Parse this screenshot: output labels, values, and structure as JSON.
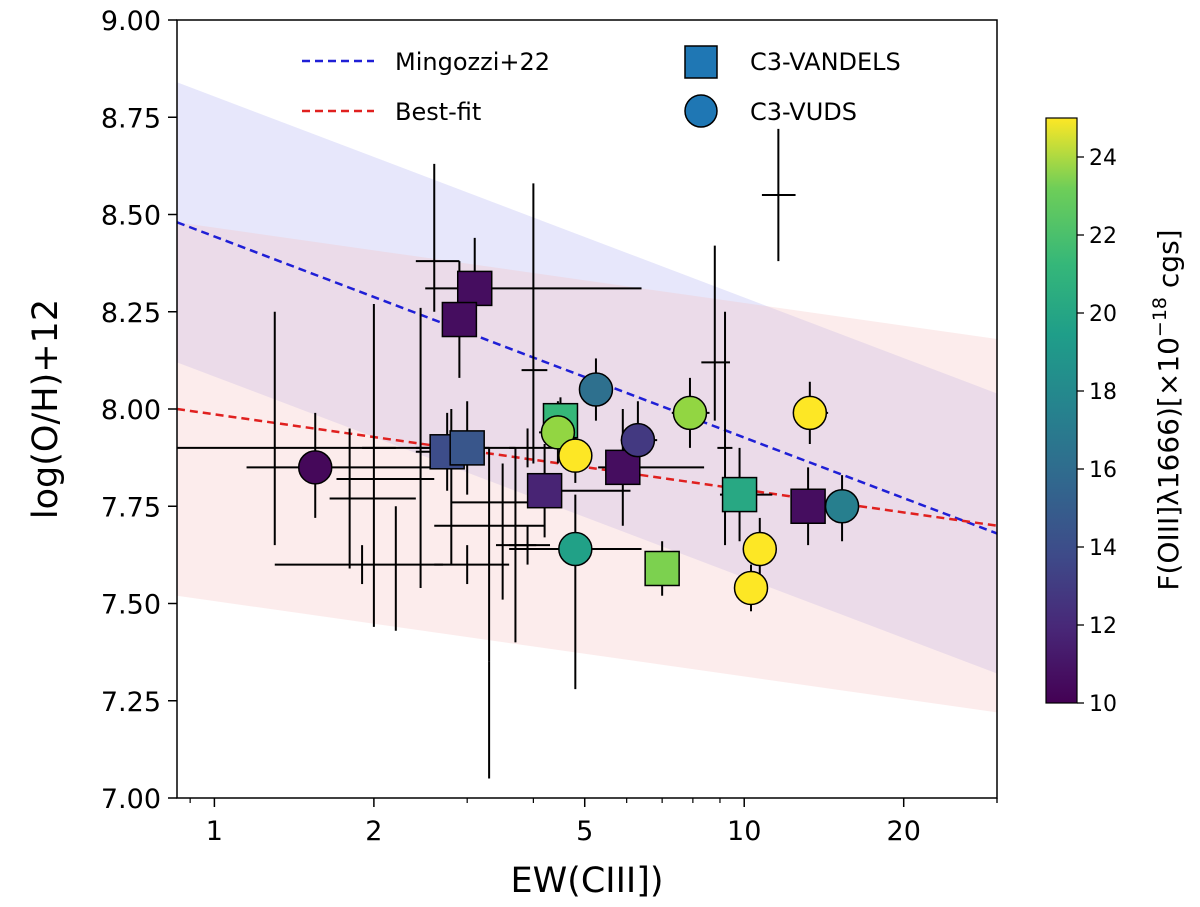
{
  "chart_data": {
    "type": "scatter",
    "title": "",
    "xlabel": "EW(CIII])",
    "ylabel": "log(O/H)+12",
    "xscale": "log",
    "xlim": [
      0.85,
      30
    ],
    "ylim": [
      7.0,
      9.0
    ],
    "xticks": [
      1,
      2,
      5,
      10,
      20
    ],
    "xtick_labels": [
      "1",
      "2",
      "5",
      "10",
      "20"
    ],
    "yticks": [
      7.0,
      7.25,
      7.5,
      7.75,
      8.0,
      8.25,
      8.5,
      8.75,
      9.0
    ],
    "ytick_labels": [
      "7.00",
      "7.25",
      "7.50",
      "7.75",
      "8.00",
      "8.25",
      "8.50",
      "8.75",
      "9.00"
    ],
    "colorbar": {
      "label": "F(OIII]λ1666)[×10",
      "label_exp": "−18",
      "label_tail": " cgs]",
      "vmin": 10,
      "vmax": 25,
      "ticks": [
        10,
        12,
        14,
        16,
        18,
        20,
        22,
        24
      ],
      "tick_labels": [
        "10",
        "12",
        "14",
        "16",
        "18",
        "20",
        "22",
        "24"
      ],
      "colormap": "viridis"
    },
    "legend": {
      "position": "top",
      "entries": [
        {
          "label": "Mingozzi+22",
          "kind": "line",
          "color": "#1f1fd6"
        },
        {
          "label": "Best-fit",
          "kind": "line",
          "color": "#e0201f"
        },
        {
          "label": "C3-VANDELS",
          "kind": "square",
          "color": "#1f77b4"
        },
        {
          "label": "C3-VUDS",
          "kind": "circle",
          "color": "#1f77b4"
        }
      ]
    },
    "lines": [
      {
        "name": "Mingozzi+22",
        "color": "#1f1fd6",
        "dash": "dashed",
        "x": [
          0.85,
          30
        ],
        "y": [
          8.48,
          7.68
        ],
        "band": {
          "color": "#a9a9f2",
          "upper": [
            8.84,
            8.04
          ],
          "lower": [
            8.12,
            7.32
          ]
        }
      },
      {
        "name": "Best-fit",
        "color": "#e0201f",
        "dash": "dashed",
        "x": [
          0.85,
          30
        ],
        "y": [
          8.0,
          7.7
        ],
        "band": {
          "color": "#f5c0c0",
          "upper": [
            8.48,
            8.18
          ],
          "lower": [
            7.52,
            7.22
          ]
        }
      }
    ],
    "points_vandels": [
      {
        "x": 3.1,
        "y": 8.31,
        "c": 10.5,
        "xerr": [
          0.6,
          3.3
        ],
        "yerr": [
          0.1,
          0.13
        ]
      },
      {
        "x": 2.9,
        "y": 8.23,
        "c": 10.5,
        "xerr": [
          0.1,
          0.1
        ],
        "yerr": [
          0.15,
          0.15
        ]
      },
      {
        "x": 2.75,
        "y": 7.89,
        "c": 13.5,
        "xerr": [
          0.35,
          0.4
        ],
        "yerr": [
          0.1,
          0.1
        ]
      },
      {
        "x": 3.0,
        "y": 7.9,
        "c": 14.0,
        "xerr": [
          0.6,
          0.7
        ],
        "yerr": [
          0.12,
          0.12
        ]
      },
      {
        "x": 4.5,
        "y": 7.97,
        "c": 20.0,
        "xerr": [
          0.2,
          0.25
        ],
        "yerr": [
          0.06,
          0.06
        ]
      },
      {
        "x": 4.2,
        "y": 7.79,
        "c": 11.5,
        "xerr": [
          0.3,
          1.9
        ],
        "yerr": [
          0.12,
          0.12
        ]
      },
      {
        "x": 5.9,
        "y": 7.85,
        "c": 10.5,
        "xerr": [
          0.6,
          2.5
        ],
        "yerr": [
          0.15,
          0.15
        ]
      },
      {
        "x": 7.0,
        "y": 7.59,
        "c": 22.0,
        "xerr": [
          0.2,
          0.3
        ],
        "yerr": [
          0.07,
          0.07
        ]
      },
      {
        "x": 9.8,
        "y": 7.78,
        "c": 19.0,
        "xerr": [
          0.8,
          1.5
        ],
        "yerr": [
          0.12,
          0.12
        ]
      },
      {
        "x": 13.2,
        "y": 7.75,
        "c": 10.5,
        "xerr": [
          0.9,
          1.0
        ],
        "yerr": [
          0.1,
          0.1
        ]
      }
    ],
    "points_vuds": [
      {
        "x": 1.55,
        "y": 7.85,
        "c": 10.3,
        "xerr": [
          0.4,
          1.2
        ],
        "yerr": [
          0.13,
          0.14
        ]
      },
      {
        "x": 5.25,
        "y": 8.05,
        "c": 15.5,
        "xerr": [
          0.35,
          0.4
        ],
        "yerr": [
          0.08,
          0.08
        ]
      },
      {
        "x": 4.45,
        "y": 7.94,
        "c": 22.5,
        "xerr": [
          0.35,
          0.4
        ],
        "yerr": [
          0.08,
          0.08
        ]
      },
      {
        "x": 4.8,
        "y": 7.88,
        "c": 25.0,
        "xerr": [
          0.25,
          0.3
        ],
        "yerr": [
          0.07,
          0.07
        ]
      },
      {
        "x": 6.3,
        "y": 7.92,
        "c": 12.5,
        "xerr": [
          0.45,
          0.55
        ],
        "yerr": [
          0.1,
          0.1
        ]
      },
      {
        "x": 7.9,
        "y": 7.99,
        "c": 22.5,
        "xerr": [
          0.6,
          0.7
        ],
        "yerr": [
          0.09,
          0.09
        ]
      },
      {
        "x": 4.8,
        "y": 7.64,
        "c": 18.5,
        "xerr": [
          1.2,
          1.6
        ],
        "yerr": [
          0.36,
          0.14
        ]
      },
      {
        "x": 13.3,
        "y": 7.99,
        "c": 25.0,
        "xerr": [
          0.9,
          1.1
        ],
        "yerr": [
          0.08,
          0.08
        ]
      },
      {
        "x": 10.7,
        "y": 7.64,
        "c": 25.0,
        "xerr": [
          0.7,
          0.8
        ],
        "yerr": [
          0.08,
          0.08
        ]
      },
      {
        "x": 10.3,
        "y": 7.54,
        "c": 25.0,
        "xerr": [
          0.6,
          0.7
        ],
        "yerr": [
          0.06,
          0.06
        ]
      },
      {
        "x": 15.3,
        "y": 7.75,
        "c": 16.5,
        "xerr": [
          0.8,
          0.9
        ],
        "yerr": [
          0.09,
          0.08
        ]
      }
    ],
    "points_nodetect": [
      {
        "x": 1.3,
        "y": 7.9,
        "xerr": [
          0.45,
          0.9
        ],
        "yerr": [
          0.25,
          0.35
        ]
      },
      {
        "x": 2.0,
        "y": 7.82,
        "xerr": [
          0.3,
          0.6
        ],
        "yerr": [
          0.38,
          0.45
        ]
      },
      {
        "x": 2.45,
        "y": 7.9,
        "xerr": [
          0.55,
          0.85
        ],
        "yerr": [
          0.36,
          0.36
        ]
      },
      {
        "x": 1.8,
        "y": 7.77,
        "xerr": [
          0.15,
          0.6
        ],
        "yerr": [
          0.18,
          0.18
        ]
      },
      {
        "x": 2.6,
        "y": 8.38,
        "xerr": [
          0.2,
          0.3
        ],
        "yerr": [
          0.13,
          0.25
        ]
      },
      {
        "x": 1.9,
        "y": 7.6,
        "xerr": [
          0.6,
          0.8
        ],
        "yerr": [
          0.05,
          0.05
        ]
      },
      {
        "x": 2.2,
        "y": 7.6,
        "xerr": [
          0.0,
          0.0
        ],
        "yerr": [
          0.17,
          0.15
        ]
      },
      {
        "x": 3.0,
        "y": 7.6,
        "xerr": [
          0.4,
          0.6
        ],
        "yerr": [
          0.05,
          0.05
        ]
      },
      {
        "x": 3.3,
        "y": 7.7,
        "xerr": [
          0.7,
          0.9
        ],
        "yerr": [
          0.35,
          0.2
        ]
      },
      {
        "x": 3.5,
        "y": 7.76,
        "xerr": [
          0.7,
          0.4
        ],
        "yerr": [
          0.25,
          0.1
        ]
      },
      {
        "x": 3.7,
        "y": 7.65,
        "xerr": [
          0.3,
          0.35
        ],
        "yerr": [
          0.25,
          0.25
        ]
      },
      {
        "x": 3.9,
        "y": 7.65,
        "xerr": [
          0.3,
          0.4
        ],
        "yerr": [
          0.05,
          0.05
        ]
      },
      {
        "x": 4.0,
        "y": 8.1,
        "xerr": [
          0.2,
          0.25
        ],
        "yerr": [
          0.24,
          0.48
        ]
      },
      {
        "x": 3.9,
        "y": 7.9,
        "xerr": [
          0.3,
          0.45
        ],
        "yerr": [
          0.05,
          0.05
        ]
      },
      {
        "x": 8.8,
        "y": 8.12,
        "xerr": [
          0.5,
          0.6
        ],
        "yerr": [
          0.15,
          0.3
        ]
      },
      {
        "x": 11.6,
        "y": 8.55,
        "xerr": [
          0.8,
          0.9
        ],
        "yerr": [
          0.17,
          0.17
        ]
      },
      {
        "x": 9.2,
        "y": 7.9,
        "xerr": [
          0.3,
          0.3
        ],
        "yerr": [
          0.25,
          0.35
        ]
      },
      {
        "x": 3.3,
        "y": 7.2,
        "xerr": [
          0.0,
          0.0
        ],
        "yerr": [
          0.15,
          0.15
        ]
      },
      {
        "x": 2.8,
        "y": 7.8,
        "xerr": [
          0.0,
          0.0
        ],
        "yerr": [
          0.2,
          0.2
        ]
      }
    ]
  }
}
